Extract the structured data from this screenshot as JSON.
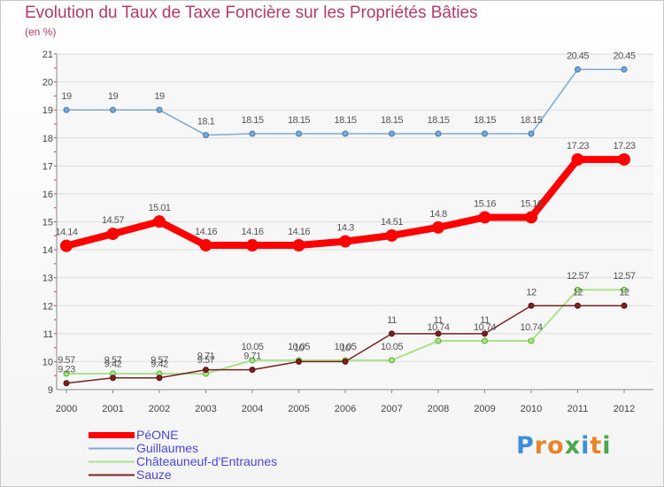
{
  "chart_data": {
    "type": "line",
    "title": "Evolution du Taux de Taxe Foncière sur les Propriétés Bâties",
    "subtitle": "(en %)",
    "xlabel": "",
    "ylabel": "",
    "categories": [
      "2000",
      "2001",
      "2002",
      "2003",
      "2004",
      "2005",
      "2006",
      "2007",
      "2008",
      "2009",
      "2010",
      "2011",
      "2012"
    ],
    "ylim": [
      9,
      21
    ],
    "yticks": [
      9,
      10,
      11,
      12,
      13,
      14,
      15,
      16,
      17,
      18,
      19,
      20,
      21
    ],
    "grid": "horizontal",
    "legend_position": "bottom-left",
    "series": [
      {
        "name": "PéONE",
        "color": "#ff0000",
        "values": [
          14.14,
          14.57,
          15.01,
          14.16,
          14.16,
          14.16,
          14.3,
          14.51,
          14.8,
          15.16,
          15.16,
          17.23,
          17.23
        ],
        "labels": [
          "14.14",
          "14.57",
          "15.01",
          "14.16",
          "14.16",
          "14.16",
          "14.3",
          "14.51",
          "14.8",
          "15.16",
          "15.16",
          "17.23",
          "17.23"
        ]
      },
      {
        "name": "Guillaumes",
        "color": "#7aaad4",
        "values": [
          19,
          19,
          19,
          18.1,
          18.15,
          18.15,
          18.15,
          18.15,
          18.15,
          18.15,
          18.15,
          20.45,
          20.45
        ],
        "labels": [
          "19",
          "19",
          "19",
          "18.1",
          "18.15",
          "18.15",
          "18.15",
          "18.15",
          "18.15",
          "18.15",
          "18.15",
          "20.45",
          "20.45"
        ]
      },
      {
        "name": "Châteauneuf-d'Entraunes",
        "color": "#a9e28a",
        "values": [
          9.57,
          9.57,
          9.57,
          9.57,
          10.05,
          10.05,
          10.05,
          10.05,
          10.74,
          10.74,
          10.74,
          12.57,
          12.57
        ],
        "labels": [
          "9.57",
          "9.57",
          "9.57",
          "9.57",
          "10.05",
          "10.05",
          "10.05",
          "10.05",
          "10.74",
          "10.74",
          "10.74",
          "12.57",
          "12.57"
        ]
      },
      {
        "name": "Sauze",
        "color": "#7a2020",
        "values": [
          9.23,
          9.42,
          9.42,
          9.71,
          9.71,
          10,
          10,
          11,
          11,
          11,
          12,
          12,
          12
        ],
        "labels": [
          "9.23",
          "9.42",
          "9.42",
          "9.71",
          "9.71",
          "10",
          "10",
          "11",
          "11",
          "11",
          "12",
          "12",
          "12"
        ]
      }
    ]
  },
  "brand": {
    "logo_letters": [
      "P",
      "r",
      "o",
      "x",
      "i",
      "t",
      "i"
    ],
    "logo_colors": [
      "#3d8fd6",
      "#e8842a",
      "#e8842a",
      "#4aa84a",
      "#3d8fd6",
      "#e8842a",
      "#4aa84a"
    ]
  }
}
